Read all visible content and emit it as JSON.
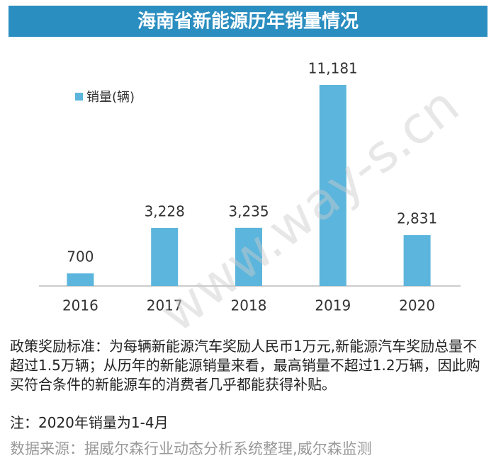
{
  "chart_data": {
    "type": "bar",
    "title": "海南省新能源历年销量情况",
    "categories": [
      "2016",
      "2017",
      "2018",
      "2019",
      "2020"
    ],
    "series": [
      {
        "name": "销量(辆)",
        "color": "#5bb5dc",
        "values": [
          700,
          3228,
          3235,
          11181,
          2831
        ],
        "value_labels": [
          "700",
          "3,228",
          "3,235",
          "11,181",
          "2,831"
        ]
      }
    ],
    "watermark": "www.way-s.cn",
    "notes": [
      "政策奖励标准：为每辆新能源汽车奖励人民币1万元,新能源汽车奖励总量不超过1.5万辆；从历年的新能源销量来看，最高销量不超过1.2万辆，因此购买符合条件的新能源车的消费者几乎都能获得补贴。",
      "注：2020年销量为1-4月"
    ],
    "source": "数据来源：据威尔森行业动态分析系统整理,威尔森监测"
  }
}
